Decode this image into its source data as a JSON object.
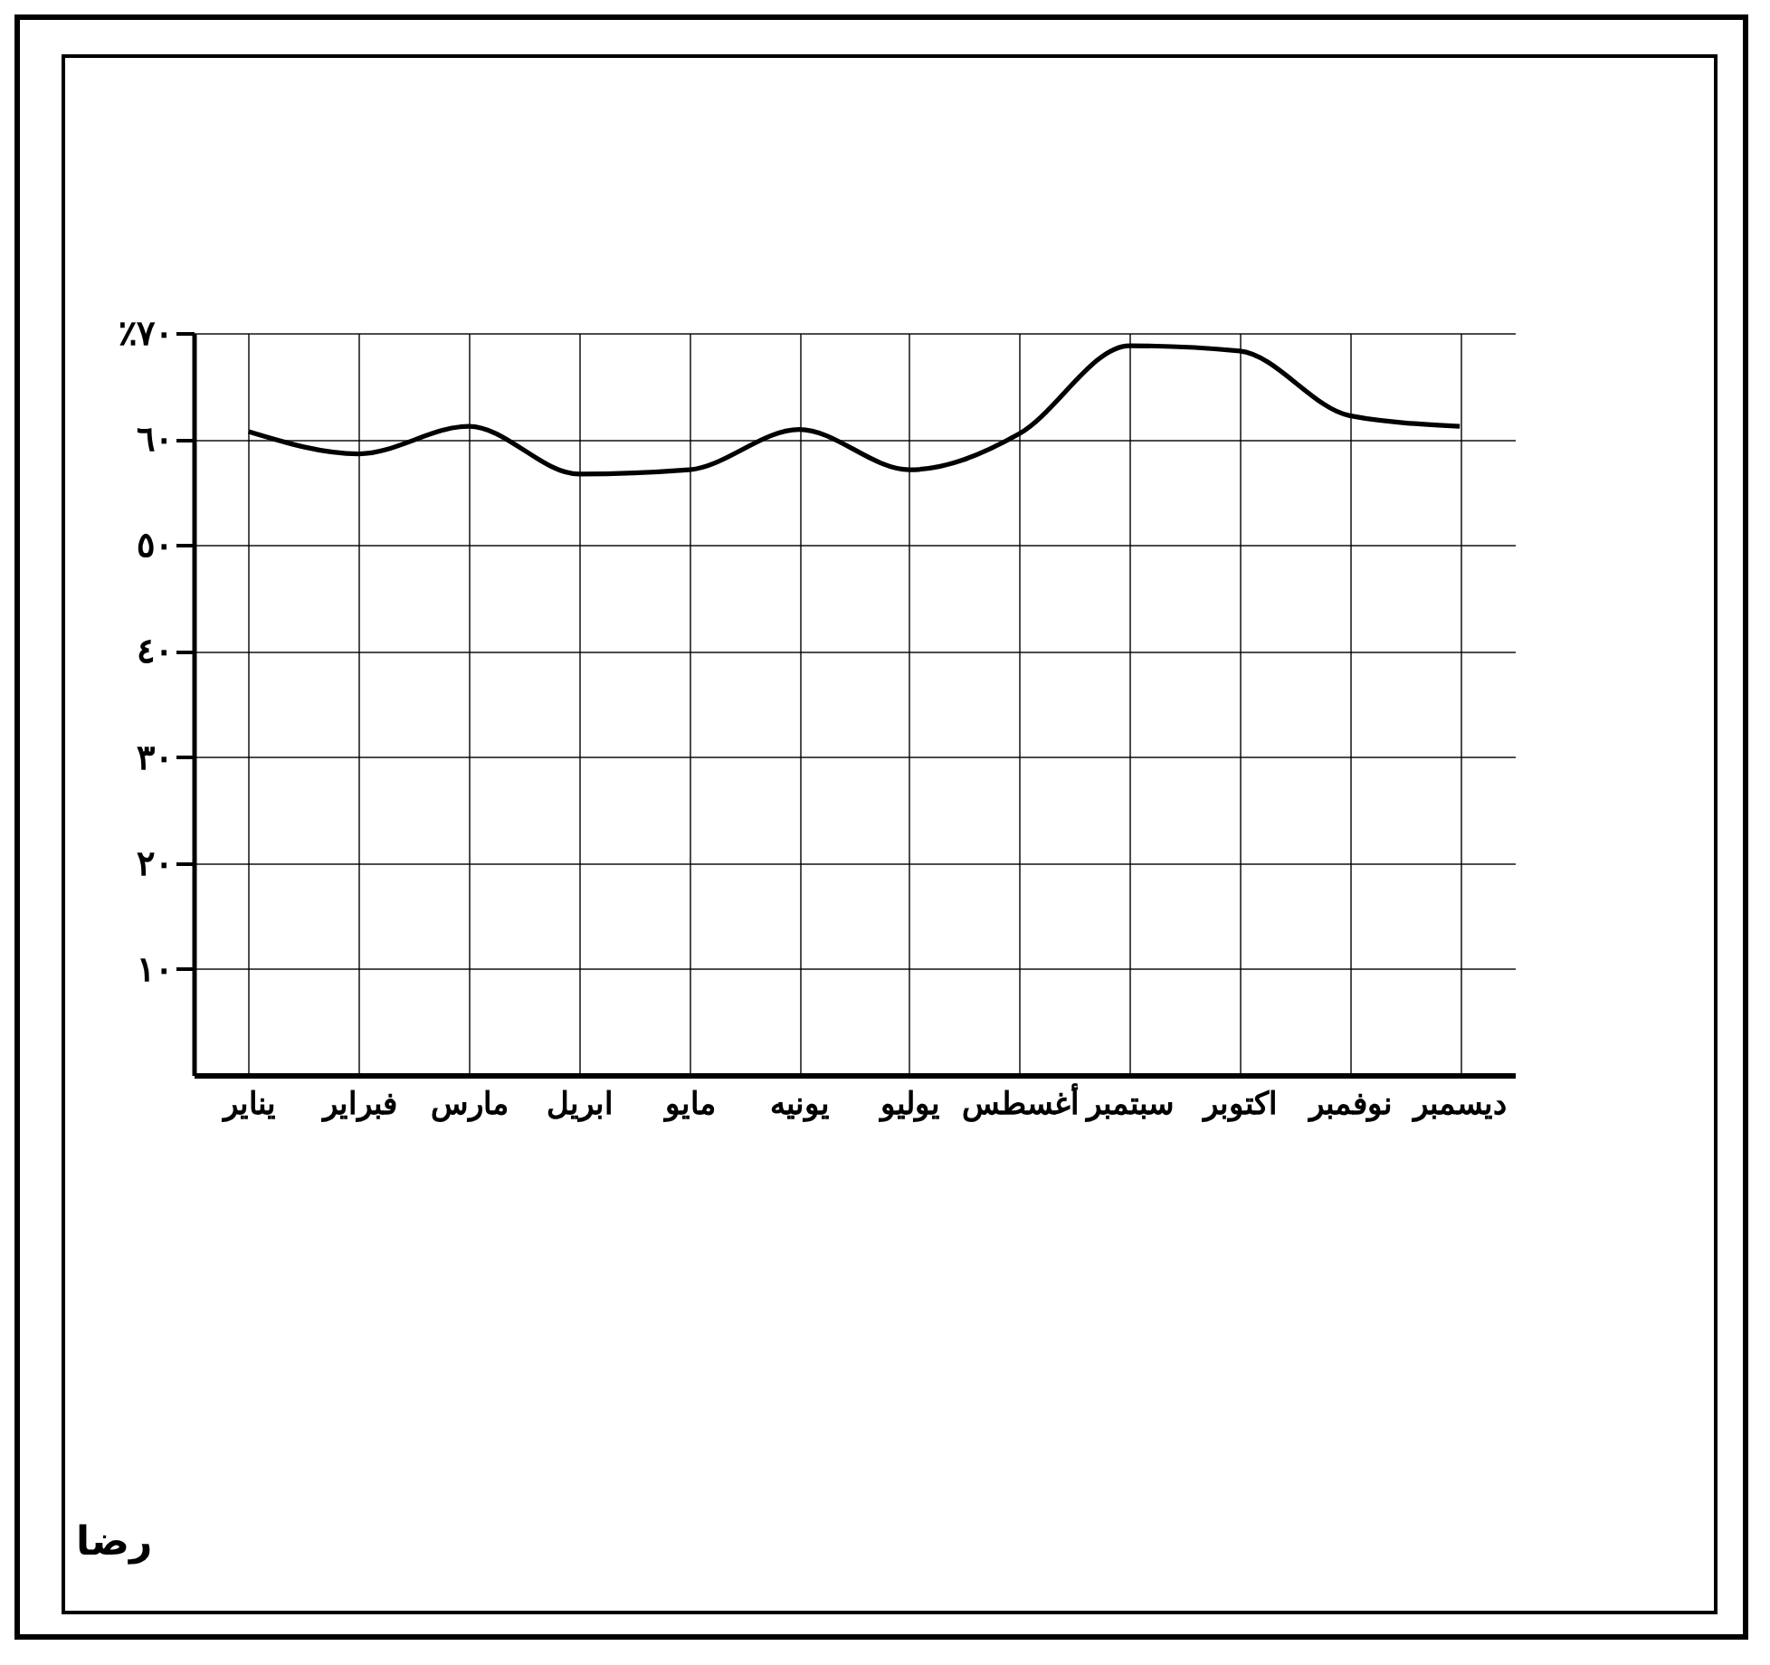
{
  "chart_data": {
    "type": "line",
    "categories": [
      "يناير",
      "فبراير",
      "مارس",
      "ابريل",
      "مايو",
      "يونيه",
      "يوليو",
      "أغسطس",
      "سبتمبر",
      "اكتوبر",
      "نوفمبر",
      "ديسمبر"
    ],
    "series": [
      {
        "color": "#000000",
        "values": [
          60.7,
          58.6,
          61.2,
          56.7,
          57.1,
          60.9,
          57.1,
          60.5,
          68.8,
          68.3,
          62.2,
          61.2
        ]
      }
    ],
    "ylim": [
      0,
      70
    ],
    "yticks": [
      {
        "value": 10,
        "label": "١٠"
      },
      {
        "value": 20,
        "label": "٢٠"
      },
      {
        "value": 30,
        "label": "٣٠"
      },
      {
        "value": 40,
        "label": "٤٠"
      },
      {
        "value": 50,
        "label": "٥٠"
      },
      {
        "value": 60,
        "label": "٦٠"
      },
      {
        "value": 70,
        "label": "٪٧٠"
      }
    ],
    "grid": true,
    "annotations": [
      "رضا"
    ]
  }
}
